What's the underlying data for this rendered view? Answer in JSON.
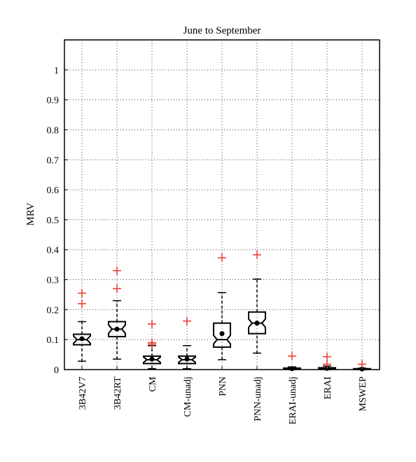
{
  "chart_data": {
    "type": "box",
    "title": "June to September",
    "xlabel": "",
    "ylabel": "MRV",
    "ylim": [
      0,
      1.1
    ],
    "yticks": [
      "0",
      "0.1",
      "0.2",
      "0.3",
      "0.4",
      "0.5",
      "0.6",
      "0.7",
      "0.8",
      "0.9",
      "1"
    ],
    "grid": true,
    "notched": true,
    "colors": {
      "box": "#000000",
      "outlier": "#e8392a",
      "grid": "#444444"
    },
    "categories": [
      "3B42V7",
      "3B42RT",
      "CM",
      "CM-unadj",
      "PNN",
      "PNN-unadj",
      "ERAI-unadj",
      "ERAI",
      "MSWEP"
    ],
    "boxes": [
      {
        "name": "3B42V7",
        "whisker_low": 0.028,
        "q1": 0.083,
        "median": 0.1,
        "q3": 0.118,
        "whisker_high": 0.16,
        "mean": 0.103,
        "outliers": [
          0.22,
          0.255
        ]
      },
      {
        "name": "3B42RT",
        "whisker_low": 0.035,
        "q1": 0.11,
        "median": 0.135,
        "q3": 0.16,
        "whisker_high": 0.23,
        "mean": 0.135,
        "outliers": [
          0.27,
          0.33
        ]
      },
      {
        "name": "CM",
        "whisker_low": 0.003,
        "q1": 0.02,
        "median": 0.033,
        "q3": 0.045,
        "whisker_high": 0.08,
        "mean": 0.035,
        "outliers": [
          0.085,
          0.09,
          0.152
        ]
      },
      {
        "name": "CM-unadj",
        "whisker_low": 0.003,
        "q1": 0.02,
        "median": 0.033,
        "q3": 0.045,
        "whisker_high": 0.08,
        "mean": 0.035,
        "outliers": [
          0.162
        ]
      },
      {
        "name": "PNN",
        "whisker_low": 0.033,
        "q1": 0.075,
        "median": 0.1,
        "q3": 0.155,
        "whisker_high": 0.257,
        "mean": 0.12,
        "outliers": [
          0.373
        ]
      },
      {
        "name": "PNN-unadj",
        "whisker_low": 0.055,
        "q1": 0.12,
        "median": 0.155,
        "q3": 0.192,
        "whisker_high": 0.302,
        "mean": 0.155,
        "outliers": [
          0.383
        ]
      },
      {
        "name": "ERAI-unadj",
        "whisker_low": 0.0,
        "q1": 0.0015,
        "median": 0.003,
        "q3": 0.005,
        "whisker_high": 0.009,
        "mean": 0.003,
        "outliers": [
          0.045
        ]
      },
      {
        "name": "ERAI",
        "whisker_low": 0.0,
        "q1": 0.002,
        "median": 0.004,
        "q3": 0.006,
        "whisker_high": 0.012,
        "mean": 0.004,
        "outliers": [
          0.018,
          0.043
        ]
      },
      {
        "name": "MSWEP",
        "whisker_low": 0.0,
        "q1": 0.001,
        "median": 0.002,
        "q3": 0.003,
        "whisker_high": 0.005,
        "mean": 0.002,
        "outliers": [
          0.018
        ]
      }
    ]
  }
}
